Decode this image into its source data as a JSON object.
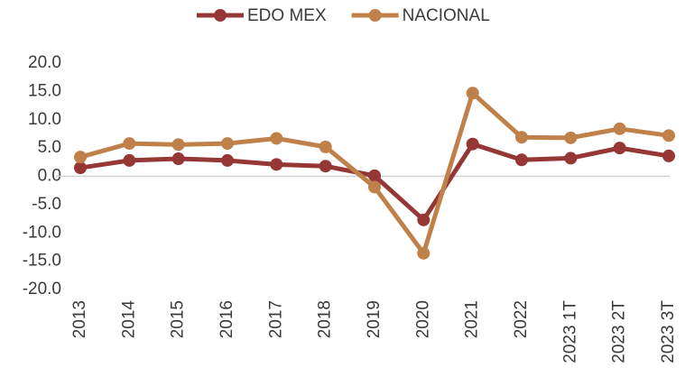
{
  "chart_data": {
    "type": "line",
    "categories": [
      "2013",
      "2014",
      "2015",
      "2016",
      "2017",
      "2018",
      "2019",
      "2020",
      "2021",
      "2022",
      "2023 1T",
      "2023 2T",
      "2023 3T"
    ],
    "series": [
      {
        "name": "EDO MEX",
        "color": "#953735",
        "values": [
          1.5,
          2.8,
          3.1,
          2.8,
          2.1,
          1.8,
          0.1,
          -7.7,
          5.7,
          2.9,
          3.2,
          5.0,
          3.6
        ]
      },
      {
        "name": "NACIONAL",
        "color": "#c0804a",
        "values": [
          3.4,
          5.8,
          5.6,
          5.8,
          6.7,
          5.2,
          -1.9,
          -13.6,
          14.7,
          6.9,
          6.8,
          8.4,
          7.2
        ]
      }
    ],
    "ylim": [
      -20,
      20
    ],
    "yticks": [
      {
        "value": -20,
        "label": "-20.0"
      },
      {
        "value": -15,
        "label": "-15.0"
      },
      {
        "value": -10,
        "label": "-10.0"
      },
      {
        "value": -5,
        "label": "-5.0"
      },
      {
        "value": 0,
        "label": "0.0"
      },
      {
        "value": 5,
        "label": "5.0"
      },
      {
        "value": 10,
        "label": "10.0"
      },
      {
        "value": 15,
        "label": "15.0"
      },
      {
        "value": 20,
        "label": "20.0"
      }
    ],
    "legend": "top"
  }
}
